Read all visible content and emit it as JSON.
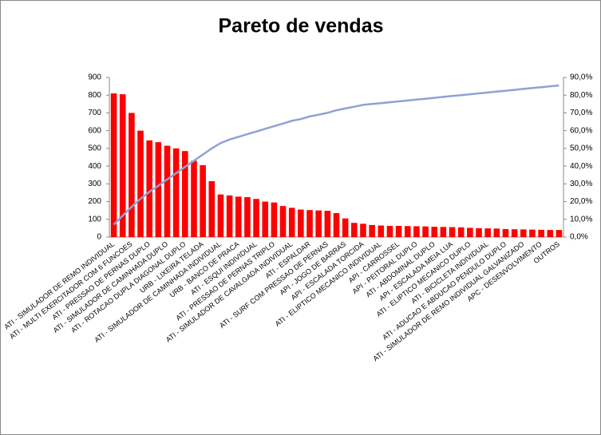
{
  "chart_data": {
    "type": "bar",
    "title": "Pareto de vendas",
    "categories": [
      "ATI - SIMULADOR DE REMO INDIVIDUAL",
      null,
      "ATI - MULTI EXERCITADOR COM 6 FUNCOES",
      null,
      "ATI - PRESSAO DE PERNAS DUPLO",
      null,
      "ATI - SIMULADOR DE CAMINHADA DUPLO",
      null,
      "ATI - ROTACAO DUPLA DIAGONAL DUPLO",
      null,
      "URB - LIXEIRA TELADA",
      null,
      "ATI - SIMULADOR DE CAMINHADA INDIVIDUAL",
      null,
      "URB - BANCO DE PRACA",
      null,
      "ATI - ESQUI INDIVIDUAL",
      null,
      "ATI - PRESSAO DE PERNAS TRIPLO",
      null,
      "ATI - SIMULADOR DE CAVALGADA INDIVIDUAL",
      null,
      "ATI - ESPALDAR",
      null,
      "ATI - SURF COM PRESSAO DE PERNAS",
      null,
      "API - JOGO DE BARRAS",
      null,
      "API - ESCALADA TORCIDA",
      null,
      "ATI - ELIPTICO MECANICO INDIVIDUAL",
      null,
      "API - CARROSSEL",
      null,
      "API - PEITORAL DUPLO",
      null,
      "ATI - ABDOMINAL DUPLO",
      null,
      "API - ESCALADA MEIA LUA",
      null,
      "ATI - ELIPTICO MECANICO DUPLO",
      null,
      "ATI - BICICLETA INDIVIDUAL",
      null,
      "ATI - ADUCAO E ABDUCAO PENDULO DUPLO",
      null,
      "ATI - SIMULADOR DE REMO INDIVIDUAL GALVANIZADO",
      null,
      "APC - DESENVOLVIMENTO",
      null,
      "OUTROS"
    ],
    "series": [
      {
        "color": "#ff0000",
        "values": [
          810,
          805,
          700,
          600,
          545,
          535,
          515,
          500,
          485,
          430,
          405,
          315,
          240,
          235,
          228,
          225,
          215,
          200,
          195,
          175,
          165,
          155,
          152,
          150,
          148,
          135,
          105,
          80,
          75,
          68,
          65,
          63,
          63,
          62,
          61,
          60,
          58,
          57,
          56,
          55,
          52,
          50,
          49,
          48,
          45,
          44,
          43,
          42,
          41,
          40,
          40
        ]
      },
      {
        "color": "#8ea2d4",
        "type": "line",
        "axis": "y2",
        "values": [
          7,
          12,
          17,
          21.5,
          25.5,
          29,
          32.5,
          36,
          39.5,
          43,
          46.5,
          50,
          53,
          55,
          56.5,
          58,
          59.5,
          61,
          62.5,
          64,
          65.5,
          66.5,
          68,
          69,
          70,
          71.5,
          72.5,
          73.5,
          74.5,
          75,
          75.5,
          76,
          76.5,
          77,
          77.5,
          78,
          78.5,
          79,
          79.5,
          80,
          80.5,
          81,
          81.5,
          82,
          82.5,
          83,
          83.5,
          84,
          84.5,
          85,
          85.5
        ]
      }
    ],
    "ylim": [
      0,
      900
    ],
    "yticks": [
      0,
      100,
      200,
      300,
      400,
      500,
      600,
      700,
      800,
      900
    ],
    "y2lim": [
      0,
      90
    ],
    "y2ticks": [
      {
        "value": 0,
        "label": "0,0%"
      },
      {
        "value": 10,
        "label": "10,0%"
      },
      {
        "value": 20,
        "label": "20,0%"
      },
      {
        "value": 30,
        "label": "30,0%"
      },
      {
        "value": 40,
        "label": "40,0%"
      },
      {
        "value": 50,
        "label": "50,0%"
      },
      {
        "value": 60,
        "label": "60,0%"
      },
      {
        "value": 70,
        "label": "70,0%"
      },
      {
        "value": 80,
        "label": "80,0%"
      },
      {
        "value": 90,
        "label": "90,0%"
      }
    ],
    "grid": false
  }
}
